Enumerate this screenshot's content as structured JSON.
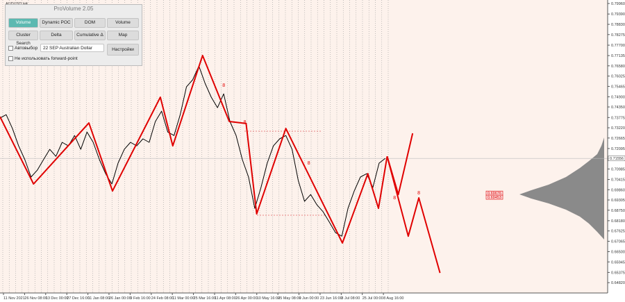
{
  "panel": {
    "title": "ProVolume 2.05",
    "buttons": [
      "Volume Profile",
      "Dynamic POC",
      "DOM",
      "Volume",
      "Cluster Search",
      "Delta",
      "Cumulative Δ",
      "Map"
    ],
    "auto_select": "Автовыбор",
    "instrument": "22 SEP Australian Dollar",
    "settings": "Настройки",
    "no_forward": "Не использовать forward-point"
  },
  "chart_data": {
    "type": "line",
    "title": "AUDUSD,H4",
    "xlim": [
      0,
      97
    ],
    "ylim": [
      0.6426,
      0.8015
    ],
    "xticks": [
      {
        "value": 0.56,
        "label": "11 Nov 2021"
      },
      {
        "value": 3.96,
        "label": "26 Nov 08:00"
      },
      {
        "value": 7.35,
        "label": "13 Dec 00:00"
      },
      {
        "value": 10.75,
        "label": "27 Dec 16:00"
      },
      {
        "value": 14.15,
        "label": "11 Jan 08:00"
      },
      {
        "value": 17.54,
        "label": "26 Jan 00:00"
      },
      {
        "value": 20.94,
        "label": "9 Feb 16:00"
      },
      {
        "value": 24.34,
        "label": "24 Feb 08:00"
      },
      {
        "value": 27.73,
        "label": "11 Mar 00:00"
      },
      {
        "value": 31.13,
        "label": "25 Mar 16:00"
      },
      {
        "value": 34.53,
        "label": "11 Apr 08:00"
      },
      {
        "value": 37.92,
        "label": "26 Apr 00:00"
      },
      {
        "value": 41.32,
        "label": "10 May 16:00"
      },
      {
        "value": 44.72,
        "label": "25 May 08:00"
      },
      {
        "value": 48.11,
        "label": "9 Jun 00:00"
      },
      {
        "value": 51.51,
        "label": "23 Jun 16:00"
      },
      {
        "value": 54.91,
        "label": "8 Jul 08:00"
      },
      {
        "value": 58.3,
        "label": "25 Jul 00:00"
      },
      {
        "value": 61.7,
        "label": "8 Aug 16:00"
      }
    ],
    "yticks": [
      {
        "value": 0.7996,
        "label": "0.79960"
      },
      {
        "value": 0.7939,
        "label": "0.79390"
      },
      {
        "value": 0.7883,
        "label": "0.78830"
      },
      0.78275,
      {
        "value": 0.777,
        "label": "0.77700"
      },
      0.77135,
      {
        "value": 0.7658,
        "label": "0.76580"
      },
      0.76025,
      0.75465,
      {
        "value": 0.749,
        "label": "0.74900"
      },
      {
        "value": 0.7435,
        "label": "0.74350"
      },
      0.73775,
      {
        "value": 0.7322,
        "label": "0.73220"
      },
      0.72665,
      0.72095,
      {
        "value": 0.7155,
        "label": "0.71550"
      },
      0.70985,
      0.70415,
      {
        "value": 0.6986,
        "label": "0.69860"
      },
      0.69305,
      {
        "value": 0.6875,
        "label": "0.68750"
      },
      {
        "value": 0.6818,
        "label": "0.68180"
      },
      0.67625,
      0.67065,
      {
        "value": 0.665,
        "label": "0.66500"
      },
      0.65945,
      0.65375,
      {
        "value": 0.6482,
        "label": "0.64820"
      }
    ],
    "current_price": 0.71556,
    "levels": [
      0.69676,
      0.69453
    ],
    "annotations": [
      {
        "x": 36,
        "y": 0.7544,
        "label": "8"
      },
      {
        "x": 39.4,
        "y": 0.7345,
        "label": "8"
      },
      {
        "x": 49.7,
        "y": 0.7122,
        "label": "8"
      },
      {
        "x": 63.5,
        "y": 0.6934,
        "label": "8"
      },
      {
        "x": 67.4,
        "y": 0.696,
        "label": "8"
      }
    ],
    "series": [
      {
        "color": "#000000",
        "x": [
          0,
          1,
          2,
          3,
          4,
          5,
          6,
          7,
          8,
          9,
          10,
          11,
          12,
          13,
          14,
          15,
          16,
          17,
          18,
          19,
          20,
          21,
          22,
          23,
          24,
          25,
          26,
          27,
          28,
          29,
          30,
          31,
          32,
          33,
          34,
          35,
          36,
          37,
          38,
          39,
          40,
          41,
          42,
          43,
          44,
          45,
          46,
          47,
          48,
          49,
          50,
          51,
          52,
          53,
          54,
          55,
          56,
          57,
          58,
          59,
          60,
          61,
          62
        ],
        "values": [
          0.7375,
          0.7393,
          0.7318,
          0.7224,
          0.7149,
          0.7055,
          0.7092,
          0.7149,
          0.7205,
          0.7167,
          0.7243,
          0.7224,
          0.728,
          0.7205,
          0.7299,
          0.7243,
          0.7149,
          0.7073,
          0.7017,
          0.713,
          0.7205,
          0.7243,
          0.7224,
          0.7262,
          0.7243,
          0.7356,
          0.7412,
          0.7299,
          0.728,
          0.7393,
          0.7544,
          0.7582,
          0.7657,
          0.7563,
          0.7488,
          0.7431,
          0.7506,
          0.7356,
          0.728,
          0.7149,
          0.7055,
          0.6885,
          0.6998,
          0.713,
          0.7224,
          0.7262,
          0.728,
          0.7205,
          0.7036,
          0.6923,
          0.696,
          0.6904,
          0.6866,
          0.681,
          0.6753,
          0.6734,
          0.6885,
          0.6979,
          0.7055,
          0.7073,
          0.6998,
          0.713,
          0.7156
        ]
      },
      {
        "color": "#e00000",
        "x": [
          0,
          5.4,
          14.3,
          18.1,
          25.8,
          27.8,
          32.6,
          36.9,
          39.6,
          41.3,
          46,
          55.1,
          59.2,
          60.9,
          62.3
        ],
        "values": [
          0.7382,
          0.7017,
          0.7348,
          0.6979,
          0.7488,
          0.7224,
          0.7714,
          0.7356,
          0.7345,
          0.6855,
          0.7318,
          0.6697,
          0.7073,
          0.6885,
          0.7167
        ]
      },
      {
        "color": "#e00000",
        "x": [
          62.3,
          64.1,
          66.4
        ],
        "values": [
          0.7167,
          0.696,
          0.7292
        ]
      },
      {
        "color": "#e00000",
        "x": [
          62.3,
          65.7,
          67.4,
          70.8
        ],
        "values": [
          0.7167,
          0.6734,
          0.6942,
          0.6535
        ]
      }
    ]
  }
}
